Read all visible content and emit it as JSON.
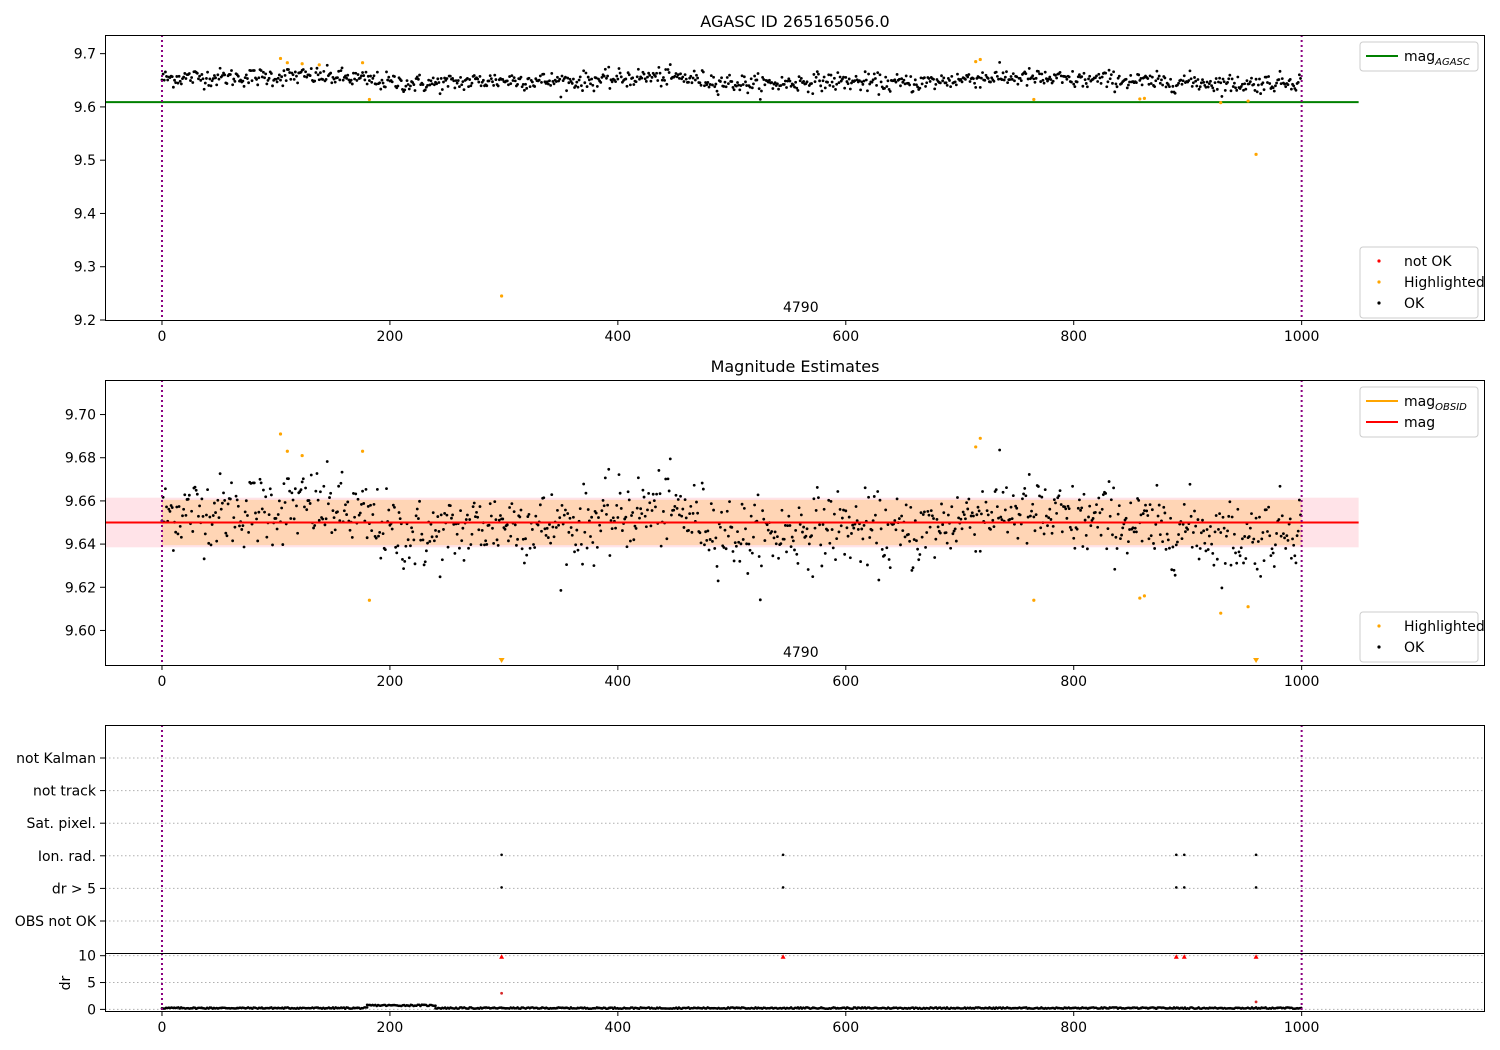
{
  "chart_data": [
    {
      "type": "scatter",
      "title": "AGASC ID 265165056.0",
      "xlim": [
        -50,
        1160
      ],
      "ylim": [
        9.2,
        9.735
      ],
      "xticks": [
        "0",
        "200",
        "400",
        "600",
        "800",
        "1000"
      ],
      "yticks": [
        "9.2",
        "9.3",
        "9.4",
        "9.5",
        "9.6",
        "9.7"
      ],
      "vlines": [
        0,
        1000
      ],
      "obsid_label": "4790",
      "obsid_label_x": 500,
      "mag_agasc": 9.609,
      "mag_agasc_range": [
        -50,
        1050
      ],
      "ok_series": {
        "name": "OK",
        "color": "#000000",
        "center": 9.65,
        "n": 1000
      },
      "highlighted": {
        "name": "Highlighted",
        "color": "#ffa500",
        "x": [
          104,
          110,
          123,
          138,
          176,
          182,
          298,
          714,
          718,
          765,
          858,
          862,
          929,
          953,
          960
        ],
        "y": [
          9.691,
          9.683,
          9.681,
          9.679,
          9.683,
          9.614,
          9.245,
          9.685,
          9.689,
          9.614,
          9.615,
          9.616,
          9.608,
          9.611,
          9.511
        ]
      },
      "not_ok": {
        "name": "not OK",
        "color": "#ff0000",
        "x": [],
        "y": []
      },
      "legend_top": [
        {
          "label": "mag",
          "sub": "AGASC",
          "color": "#008000"
        }
      ],
      "legend_bottom": [
        {
          "label": "not OK",
          "color": "#ff0000"
        },
        {
          "label": "Highlighted",
          "color": "#ffa500"
        },
        {
          "label": "OK",
          "color": "#000000"
        }
      ]
    },
    {
      "type": "scatter",
      "title": "Magnitude Estimates",
      "xlim": [
        -50,
        1160
      ],
      "ylim": [
        9.584,
        9.716
      ],
      "xticks": [
        "0",
        "200",
        "400",
        "600",
        "800",
        "1000"
      ],
      "yticks": [
        "9.60",
        "9.62",
        "9.64",
        "9.66",
        "9.68",
        "9.70"
      ],
      "vlines": [
        0,
        1000
      ],
      "obsid_label": "4790",
      "obsid_label_x": 500,
      "mag": 9.65,
      "mag_band": [
        9.6385,
        9.6615
      ],
      "mag_obsid_band": [
        9.6395,
        9.6605
      ],
      "band_range": [
        -50,
        1050
      ],
      "ok_series": {
        "name": "OK",
        "color": "#000000",
        "center": 9.65,
        "n": 1000
      },
      "highlighted": {
        "name": "Highlighted",
        "color": "#ffa500",
        "x": [
          104,
          110,
          123,
          176,
          182,
          714,
          718,
          765,
          858,
          862,
          929,
          953
        ],
        "y": [
          9.691,
          9.683,
          9.681,
          9.683,
          9.614,
          9.685,
          9.689,
          9.614,
          9.615,
          9.616,
          9.608,
          9.611
        ]
      },
      "offscale_markers": [
        298,
        960
      ],
      "legend_top": [
        {
          "label": "mag",
          "sub": "OBSID",
          "color": "#ffa500"
        },
        {
          "label": "mag",
          "sub": "",
          "color": "#ff0000"
        }
      ],
      "legend_bottom": [
        {
          "label": "Highlighted",
          "color": "#ffa500"
        },
        {
          "label": "OK",
          "color": "#000000"
        }
      ]
    },
    {
      "type": "scatter",
      "title": "",
      "xlim": [
        -50,
        1160
      ],
      "xticks": [
        "0",
        "200",
        "400",
        "600",
        "800",
        "1000"
      ],
      "vlines": [
        0,
        1000
      ],
      "flag_rows": [
        "not Kalman",
        "not track",
        "Sat. pixel.",
        "Ion. rad.",
        "dr > 5",
        "OBS not OK"
      ],
      "flag_points": {
        "Ion. rad.": [
          298,
          545,
          890,
          897,
          960
        ],
        "dr > 5": [
          298,
          545,
          890,
          897,
          960
        ]
      },
      "dr_ylabel": "dr",
      "dr_yticks": [
        "0",
        "5",
        "10"
      ],
      "dr_ylim": [
        -0.3,
        10.5
      ],
      "dr_clipped_markers": [
        298,
        545,
        890,
        897,
        960
      ],
      "dr_outliers": {
        "x": [
          298,
          960
        ],
        "y": [
          3.0,
          1.4
        ]
      },
      "dr_segments": [
        {
          "from": 0,
          "to": 180,
          "level": 0.25
        },
        {
          "from": 180,
          "to": 240,
          "level": 0.75
        },
        {
          "from": 240,
          "to": 1000,
          "level": 0.25
        }
      ]
    }
  ]
}
